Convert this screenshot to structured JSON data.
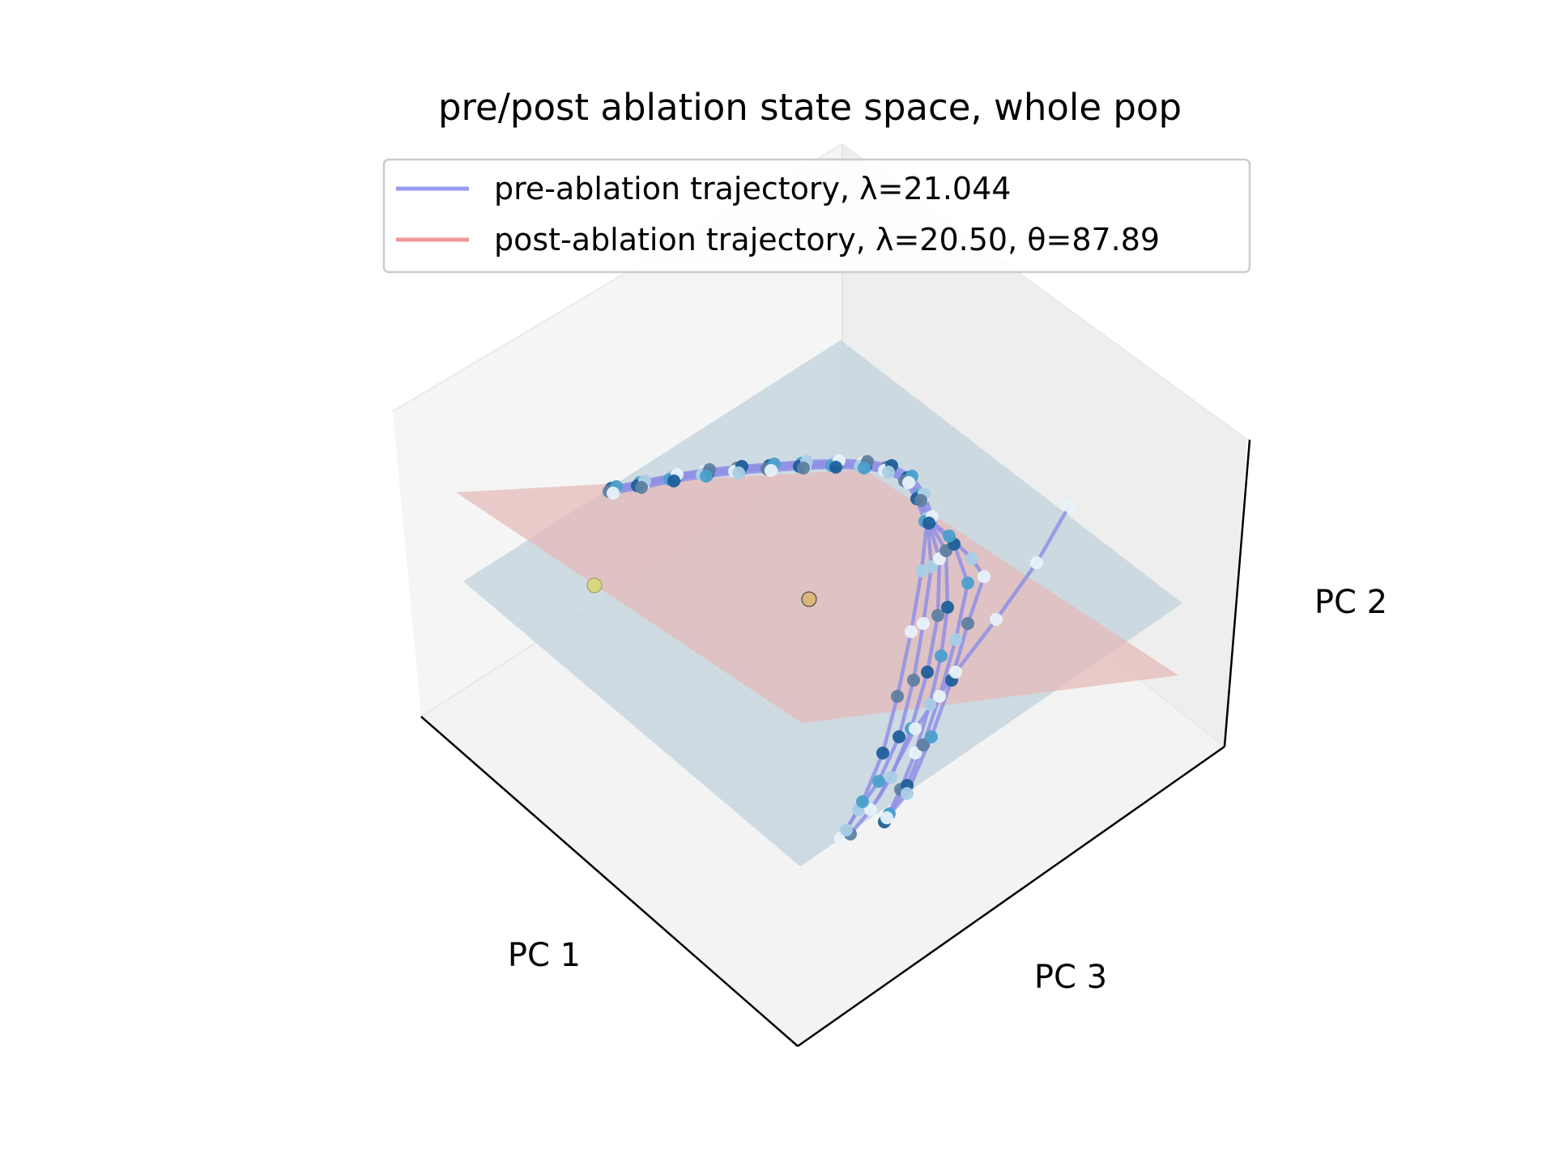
{
  "chart_data": {
    "type": "scatter",
    "projection": "3d",
    "title": "pre/post ablation state space, whole pop",
    "axes": {
      "x_label": "PC 1",
      "z_label": "PC 3",
      "y_label": "PC 2"
    },
    "ticks_visible": false,
    "grid": false,
    "legend": {
      "placement": "top-center",
      "entries": [
        {
          "label": "pre-ablation trajectory, λ=21.044",
          "color": "#9999ee"
        },
        {
          "label": "post-ablation trajectory, λ=20.50, θ=87.89",
          "color": "#ee9999"
        }
      ]
    },
    "planes": [
      {
        "role": "pre-ablation plane",
        "color": "#c2d2dc"
      },
      {
        "role": "post-ablation plane",
        "color": "#e6b8b8"
      }
    ],
    "trajectory_color": "#8f8fe6",
    "point_colormap": [
      "#1f5f9a",
      "#4b9fcc",
      "#a9cfe6",
      "#e8f2fa",
      "#5e7fa0"
    ],
    "fixed_points": [
      {
        "color": "#d8d880"
      },
      {
        "color": "#d9b77a"
      }
    ]
  }
}
